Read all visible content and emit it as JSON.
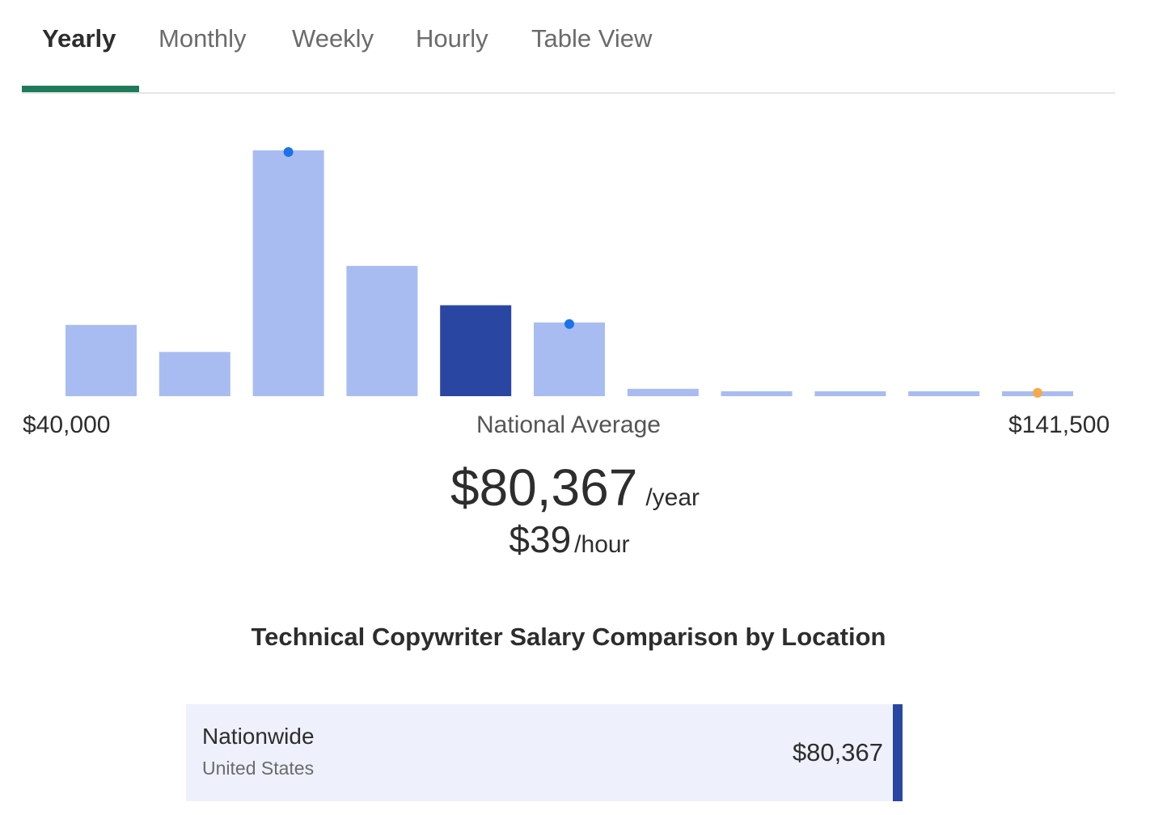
{
  "tabs": [
    {
      "label": "Yearly",
      "active": true
    },
    {
      "label": "Monthly",
      "active": false
    },
    {
      "label": "Weekly",
      "active": false
    },
    {
      "label": "Hourly",
      "active": false
    },
    {
      "label": "Table View",
      "active": false
    }
  ],
  "colors": {
    "tab_accent": "#1f7a5a",
    "bar": "#a9bcf2",
    "bar_highlight": "#2a46a3",
    "marker_blue": "#1a73e8",
    "marker_orange": "#f5a94a",
    "card_bg": "#eef1fb"
  },
  "chart_data": {
    "type": "bar",
    "title": "",
    "xlabel": "",
    "ylabel": "",
    "x_range_labels": {
      "min": "$40,000",
      "center": "National Average",
      "max": "$141,500"
    },
    "values": [
      29,
      18,
      100,
      53,
      37,
      30,
      3,
      2,
      2,
      2,
      2
    ],
    "highlighted_index": 4,
    "markers": [
      {
        "bar_index": 2,
        "color": "blue"
      },
      {
        "bar_index": 5,
        "color": "blue"
      },
      {
        "bar_index": 10,
        "color": "orange"
      }
    ],
    "ylim": [
      0,
      100
    ],
    "grid": false
  },
  "summary": {
    "yearly_amount": "$80,367",
    "yearly_unit": "/year",
    "hourly_amount": "$39",
    "hourly_unit": "/hour"
  },
  "comparison": {
    "title": "Technical Copywriter Salary Comparison by Location",
    "rows": [
      {
        "name": "Nationwide",
        "sub": "United States",
        "value": "$80,367"
      }
    ]
  }
}
